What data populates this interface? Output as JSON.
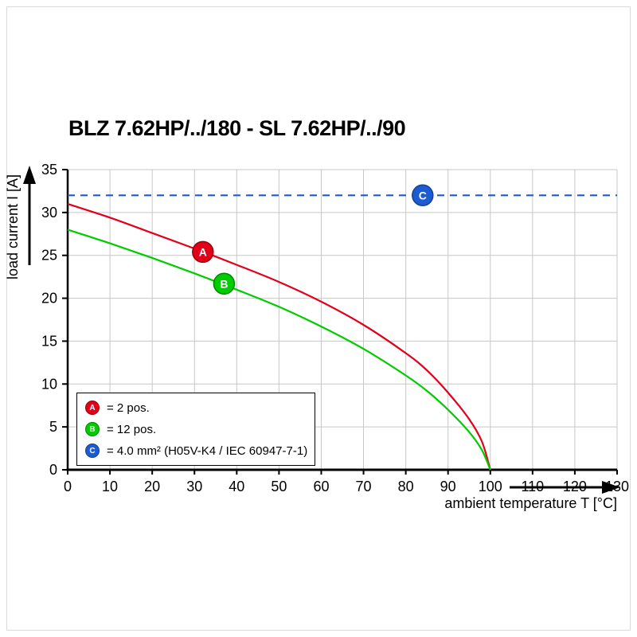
{
  "page": {
    "title": "BLZ 7.62HP/../180 - SL 7.62HP/../90"
  },
  "chart_data": {
    "type": "line",
    "title": "BLZ 7.62HP/../180 - SL 7.62HP/../90",
    "xlabel": "ambient temperature T [°C]",
    "ylabel": "load current I [A]",
    "xlim": [
      0,
      130
    ],
    "ylim": [
      0,
      35
    ],
    "x_ticks": [
      0,
      10,
      20,
      30,
      40,
      50,
      60,
      70,
      80,
      90,
      100,
      110,
      120,
      130
    ],
    "y_ticks": [
      0,
      5,
      10,
      15,
      20,
      25,
      30,
      35
    ],
    "grid": true,
    "grid_color": "#c7c7c7",
    "legend_position": "bottom-left-inside",
    "series": [
      {
        "name": "A",
        "label": "= 2 pos.",
        "color": "#e2001a",
        "edge": "#9e0000",
        "style": "solid",
        "points": [
          [
            0,
            31
          ],
          [
            10,
            29.4
          ],
          [
            20,
            27.6
          ],
          [
            30,
            25.8
          ],
          [
            40,
            23.9
          ],
          [
            50,
            21.9
          ],
          [
            60,
            19.6
          ],
          [
            70,
            16.9
          ],
          [
            80,
            13.6
          ],
          [
            85,
            11.6
          ],
          [
            90,
            9.0
          ],
          [
            95,
            5.9
          ],
          [
            98,
            3.3
          ],
          [
            100,
            0
          ]
        ],
        "marker_at": [
          32,
          25.4
        ]
      },
      {
        "name": "B",
        "label": "= 12 pos.",
        "color": "#00cc00",
        "edge": "#008500",
        "style": "solid",
        "points": [
          [
            0,
            28
          ],
          [
            10,
            26.4
          ],
          [
            20,
            24.7
          ],
          [
            30,
            22.9
          ],
          [
            40,
            21.0
          ],
          [
            50,
            19.0
          ],
          [
            60,
            16.7
          ],
          [
            70,
            14.1
          ],
          [
            80,
            11.0
          ],
          [
            85,
            9.2
          ],
          [
            90,
            7.0
          ],
          [
            95,
            4.4
          ],
          [
            98,
            2.3
          ],
          [
            100,
            0
          ]
        ],
        "marker_at": [
          37,
          21.7
        ]
      },
      {
        "name": "C",
        "label": "= 4.0 mm² (H05V-K4 / IEC 60947-7-1)",
        "color": "#1d5bd3",
        "edge": "#12418f",
        "style": "dashed",
        "points": [
          [
            0,
            32
          ],
          [
            130,
            32
          ]
        ],
        "marker_at": [
          84,
          32
        ]
      }
    ]
  }
}
